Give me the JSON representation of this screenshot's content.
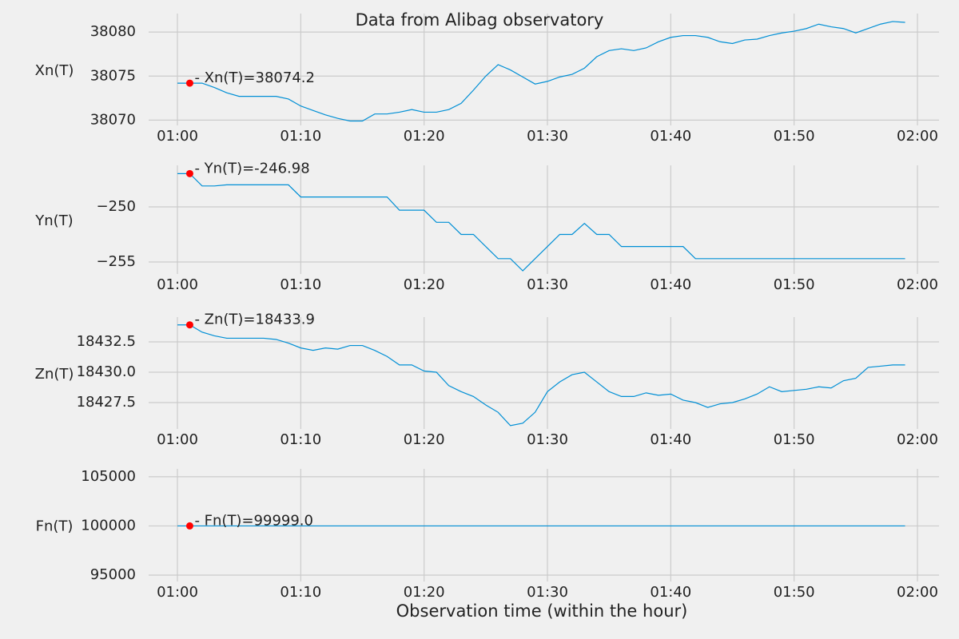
{
  "chart_data": [
    {
      "type": "line",
      "title": "Data from  Alibag observatory",
      "ylabel": "Xn(T)",
      "color": "#008fd5",
      "grid": true,
      "x": [
        "01:00",
        "01:01",
        "01:02",
        "01:03",
        "01:04",
        "01:05",
        "01:06",
        "01:07",
        "01:08",
        "01:09",
        "01:10",
        "01:11",
        "01:12",
        "01:13",
        "01:14",
        "01:15",
        "01:16",
        "01:17",
        "01:18",
        "01:19",
        "01:20",
        "01:21",
        "01:22",
        "01:23",
        "01:24",
        "01:25",
        "01:26",
        "01:27",
        "01:28",
        "01:29",
        "01:30",
        "01:31",
        "01:32",
        "01:33",
        "01:34",
        "01:35",
        "01:36",
        "01:37",
        "01:38",
        "01:39",
        "01:40",
        "01:41",
        "01:42",
        "01:43",
        "01:44",
        "01:45",
        "01:46",
        "01:47",
        "01:48",
        "01:49",
        "01:50",
        "01:51",
        "01:52",
        "01:53",
        "01:54",
        "01:55",
        "01:56",
        "01:57",
        "01:58",
        "01:59"
      ],
      "values": [
        38074.2,
        38074.2,
        38074.2,
        38073.7,
        38073.1,
        38072.7,
        38072.7,
        38072.7,
        38072.7,
        38072.4,
        38071.6,
        38071.1,
        38070.6,
        38070.2,
        38069.9,
        38069.9,
        38070.7,
        38070.7,
        38070.9,
        38071.2,
        38070.9,
        38070.9,
        38071.2,
        38071.9,
        38073.4,
        38075.0,
        38076.3,
        38075.7,
        38074.9,
        38074.1,
        38074.4,
        38074.9,
        38075.2,
        38075.9,
        38077.2,
        38077.9,
        38078.1,
        38077.9,
        38078.2,
        38078.9,
        38079.4,
        38079.6,
        38079.6,
        38079.4,
        38078.9,
        38078.7,
        38079.1,
        38079.2,
        38079.6,
        38079.9,
        38080.1,
        38080.4,
        38080.9,
        38080.6,
        38080.4,
        38079.9,
        38080.4,
        38080.9,
        38081.2,
        38081.1
      ],
      "marker": {
        "x": "01:01",
        "value": 38074.2,
        "color": "#ff0000"
      },
      "annotation": "- Xn(T)=38074.2",
      "xlim": [
        "00:57:40",
        "02:01:45"
      ],
      "xticks": [
        "01:00",
        "01:10",
        "01:20",
        "01:30",
        "01:40",
        "01:50",
        "02:00"
      ],
      "ylim": [
        38069.4,
        38082.1
      ],
      "yticks": [
        38070,
        38075,
        38080
      ]
    },
    {
      "type": "line",
      "ylabel": "Yn(T)",
      "color": "#008fd5",
      "grid": true,
      "x": [
        "01:00",
        "01:01",
        "01:02",
        "01:03",
        "01:04",
        "01:05",
        "01:06",
        "01:07",
        "01:08",
        "01:09",
        "01:10",
        "01:11",
        "01:12",
        "01:13",
        "01:14",
        "01:15",
        "01:16",
        "01:17",
        "01:18",
        "01:19",
        "01:20",
        "01:21",
        "01:22",
        "01:23",
        "01:24",
        "01:25",
        "01:26",
        "01:27",
        "01:28",
        "01:29",
        "01:30",
        "01:31",
        "01:32",
        "01:33",
        "01:34",
        "01:35",
        "01:36",
        "01:37",
        "01:38",
        "01:39",
        "01:40",
        "01:41",
        "01:42",
        "01:43",
        "01:44",
        "01:45",
        "01:46",
        "01:47",
        "01:48",
        "01:49",
        "01:50",
        "01:51",
        "01:52",
        "01:53",
        "01:54",
        "01:55",
        "01:56",
        "01:57",
        "01:58",
        "01:59"
      ],
      "values": [
        -246.98,
        -246.98,
        -248.1,
        -248.1,
        -248.0,
        -248.0,
        -248.0,
        -248.0,
        -248.0,
        -248.0,
        -249.1,
        -249.1,
        -249.1,
        -249.1,
        -249.1,
        -249.1,
        -249.1,
        -249.1,
        -250.3,
        -250.3,
        -250.3,
        -251.4,
        -251.4,
        -252.5,
        -252.5,
        -253.6,
        -254.7,
        -254.7,
        -255.8,
        -254.7,
        -253.6,
        -252.5,
        -252.5,
        -251.5,
        -252.5,
        -252.5,
        -253.6,
        -253.6,
        -253.6,
        -253.6,
        -253.6,
        -253.6,
        -254.7,
        -254.7,
        -254.7,
        -254.7,
        -254.7,
        -254.7,
        -254.7,
        -254.7,
        -254.7,
        -254.7,
        -254.7,
        -254.7,
        -254.7,
        -254.7,
        -254.7,
        -254.7,
        -254.7,
        -254.7
      ],
      "marker": {
        "x": "01:01",
        "value": -246.98,
        "color": "#ff0000"
      },
      "annotation": "- Yn(T)=-246.98",
      "xlim": [
        "00:57:40",
        "02:01:45"
      ],
      "xticks": [
        "01:00",
        "01:10",
        "01:20",
        "01:30",
        "01:40",
        "01:50",
        "02:00"
      ],
      "ylim": [
        -256.09,
        -246.23
      ],
      "yticks": [
        {
          "value": -255,
          "label": "−255"
        },
        {
          "value": -250,
          "label": "−250"
        }
      ]
    },
    {
      "type": "line",
      "ylabel": "Zn(T)",
      "color": "#008fd5",
      "grid": true,
      "x": [
        "01:00",
        "01:01",
        "01:02",
        "01:03",
        "01:04",
        "01:05",
        "01:06",
        "01:07",
        "01:08",
        "01:09",
        "01:10",
        "01:11",
        "01:12",
        "01:13",
        "01:14",
        "01:15",
        "01:16",
        "01:17",
        "01:18",
        "01:19",
        "01:20",
        "01:21",
        "01:22",
        "01:23",
        "01:24",
        "01:25",
        "01:26",
        "01:27",
        "01:28",
        "01:29",
        "01:30",
        "01:31",
        "01:32",
        "01:33",
        "01:34",
        "01:35",
        "01:36",
        "01:37",
        "01:38",
        "01:39",
        "01:40",
        "01:41",
        "01:42",
        "01:43",
        "01:44",
        "01:45",
        "01:46",
        "01:47",
        "01:48",
        "01:49",
        "01:50",
        "01:51",
        "01:52",
        "01:53",
        "01:54",
        "01:55",
        "01:56",
        "01:57",
        "01:58",
        "01:59"
      ],
      "values": [
        18433.9,
        18433.9,
        18433.3,
        18433.0,
        18432.8,
        18432.8,
        18432.8,
        18432.8,
        18432.7,
        18432.4,
        18432.0,
        18431.8,
        18432.0,
        18431.9,
        18432.2,
        18432.2,
        18431.8,
        18431.3,
        18430.6,
        18430.6,
        18430.1,
        18430.0,
        18428.9,
        18428.4,
        18428.0,
        18427.3,
        18426.7,
        18425.6,
        18425.8,
        18426.7,
        18428.4,
        18429.2,
        18429.8,
        18430.0,
        18429.2,
        18428.4,
        18428.0,
        18428.0,
        18428.3,
        18428.1,
        18428.2,
        18427.7,
        18427.5,
        18427.1,
        18427.4,
        18427.5,
        18427.8,
        18428.2,
        18428.8,
        18428.4,
        18428.5,
        18428.6,
        18428.8,
        18428.7,
        18429.3,
        18429.5,
        18430.4,
        18430.5,
        18430.6,
        18430.6
      ],
      "marker": {
        "x": "01:01",
        "value": 18433.9,
        "color": "#ff0000"
      },
      "annotation": "- Zn(T)=18433.9",
      "xlim": [
        "00:57:40",
        "02:01:45"
      ],
      "xticks": [
        "01:00",
        "01:10",
        "01:20",
        "01:30",
        "01:40",
        "01:50",
        "02:00"
      ],
      "ylim": [
        18425.33,
        18434.54
      ],
      "yticks": [
        18427.5,
        {
          "value": 18430,
          "label": "18430.0"
        },
        18432.5
      ]
    },
    {
      "type": "line",
      "ylabel": "Fn(T)",
      "xlabel": "Observation time (within the hour)",
      "color": "#008fd5",
      "grid": true,
      "x": [
        "01:00",
        "01:01",
        "01:02",
        "01:03",
        "01:04",
        "01:05",
        "01:06",
        "01:07",
        "01:08",
        "01:09",
        "01:10",
        "01:11",
        "01:12",
        "01:13",
        "01:14",
        "01:15",
        "01:16",
        "01:17",
        "01:18",
        "01:19",
        "01:20",
        "01:21",
        "01:22",
        "01:23",
        "01:24",
        "01:25",
        "01:26",
        "01:27",
        "01:28",
        "01:29",
        "01:30",
        "01:31",
        "01:32",
        "01:33",
        "01:34",
        "01:35",
        "01:36",
        "01:37",
        "01:38",
        "01:39",
        "01:40",
        "01:41",
        "01:42",
        "01:43",
        "01:44",
        "01:45",
        "01:46",
        "01:47",
        "01:48",
        "01:49",
        "01:50",
        "01:51",
        "01:52",
        "01:53",
        "01:54",
        "01:55",
        "01:56",
        "01:57",
        "01:58",
        "01:59"
      ],
      "values": [
        99999,
        99999,
        99999,
        99999,
        99999,
        99999,
        99999,
        99999,
        99999,
        99999,
        99999,
        99999,
        99999,
        99999,
        99999,
        99999,
        99999,
        99999,
        99999,
        99999,
        99999,
        99999,
        99999,
        99999,
        99999,
        99999,
        99999,
        99999,
        99999,
        99999,
        99999,
        99999,
        99999,
        99999,
        99999,
        99999,
        99999,
        99999,
        99999,
        99999,
        99999,
        99999,
        99999,
        99999,
        99999,
        99999,
        99999,
        99999,
        99999,
        99999,
        99999,
        99999,
        99999,
        99999,
        99999,
        99999,
        99999,
        99999,
        99999,
        99999
      ],
      "marker": {
        "x": "01:01",
        "value": 99999,
        "color": "#ff0000"
      },
      "annotation": "- Fn(T)=99999.0",
      "xlim": [
        "00:57:40",
        "02:01:45"
      ],
      "xticks": [
        "01:00",
        "01:10",
        "01:20",
        "01:30",
        "01:40",
        "01:50",
        "02:00"
      ],
      "ylim": [
        94350,
        105800
      ],
      "yticks": [
        95000,
        100000,
        105000
      ]
    }
  ]
}
